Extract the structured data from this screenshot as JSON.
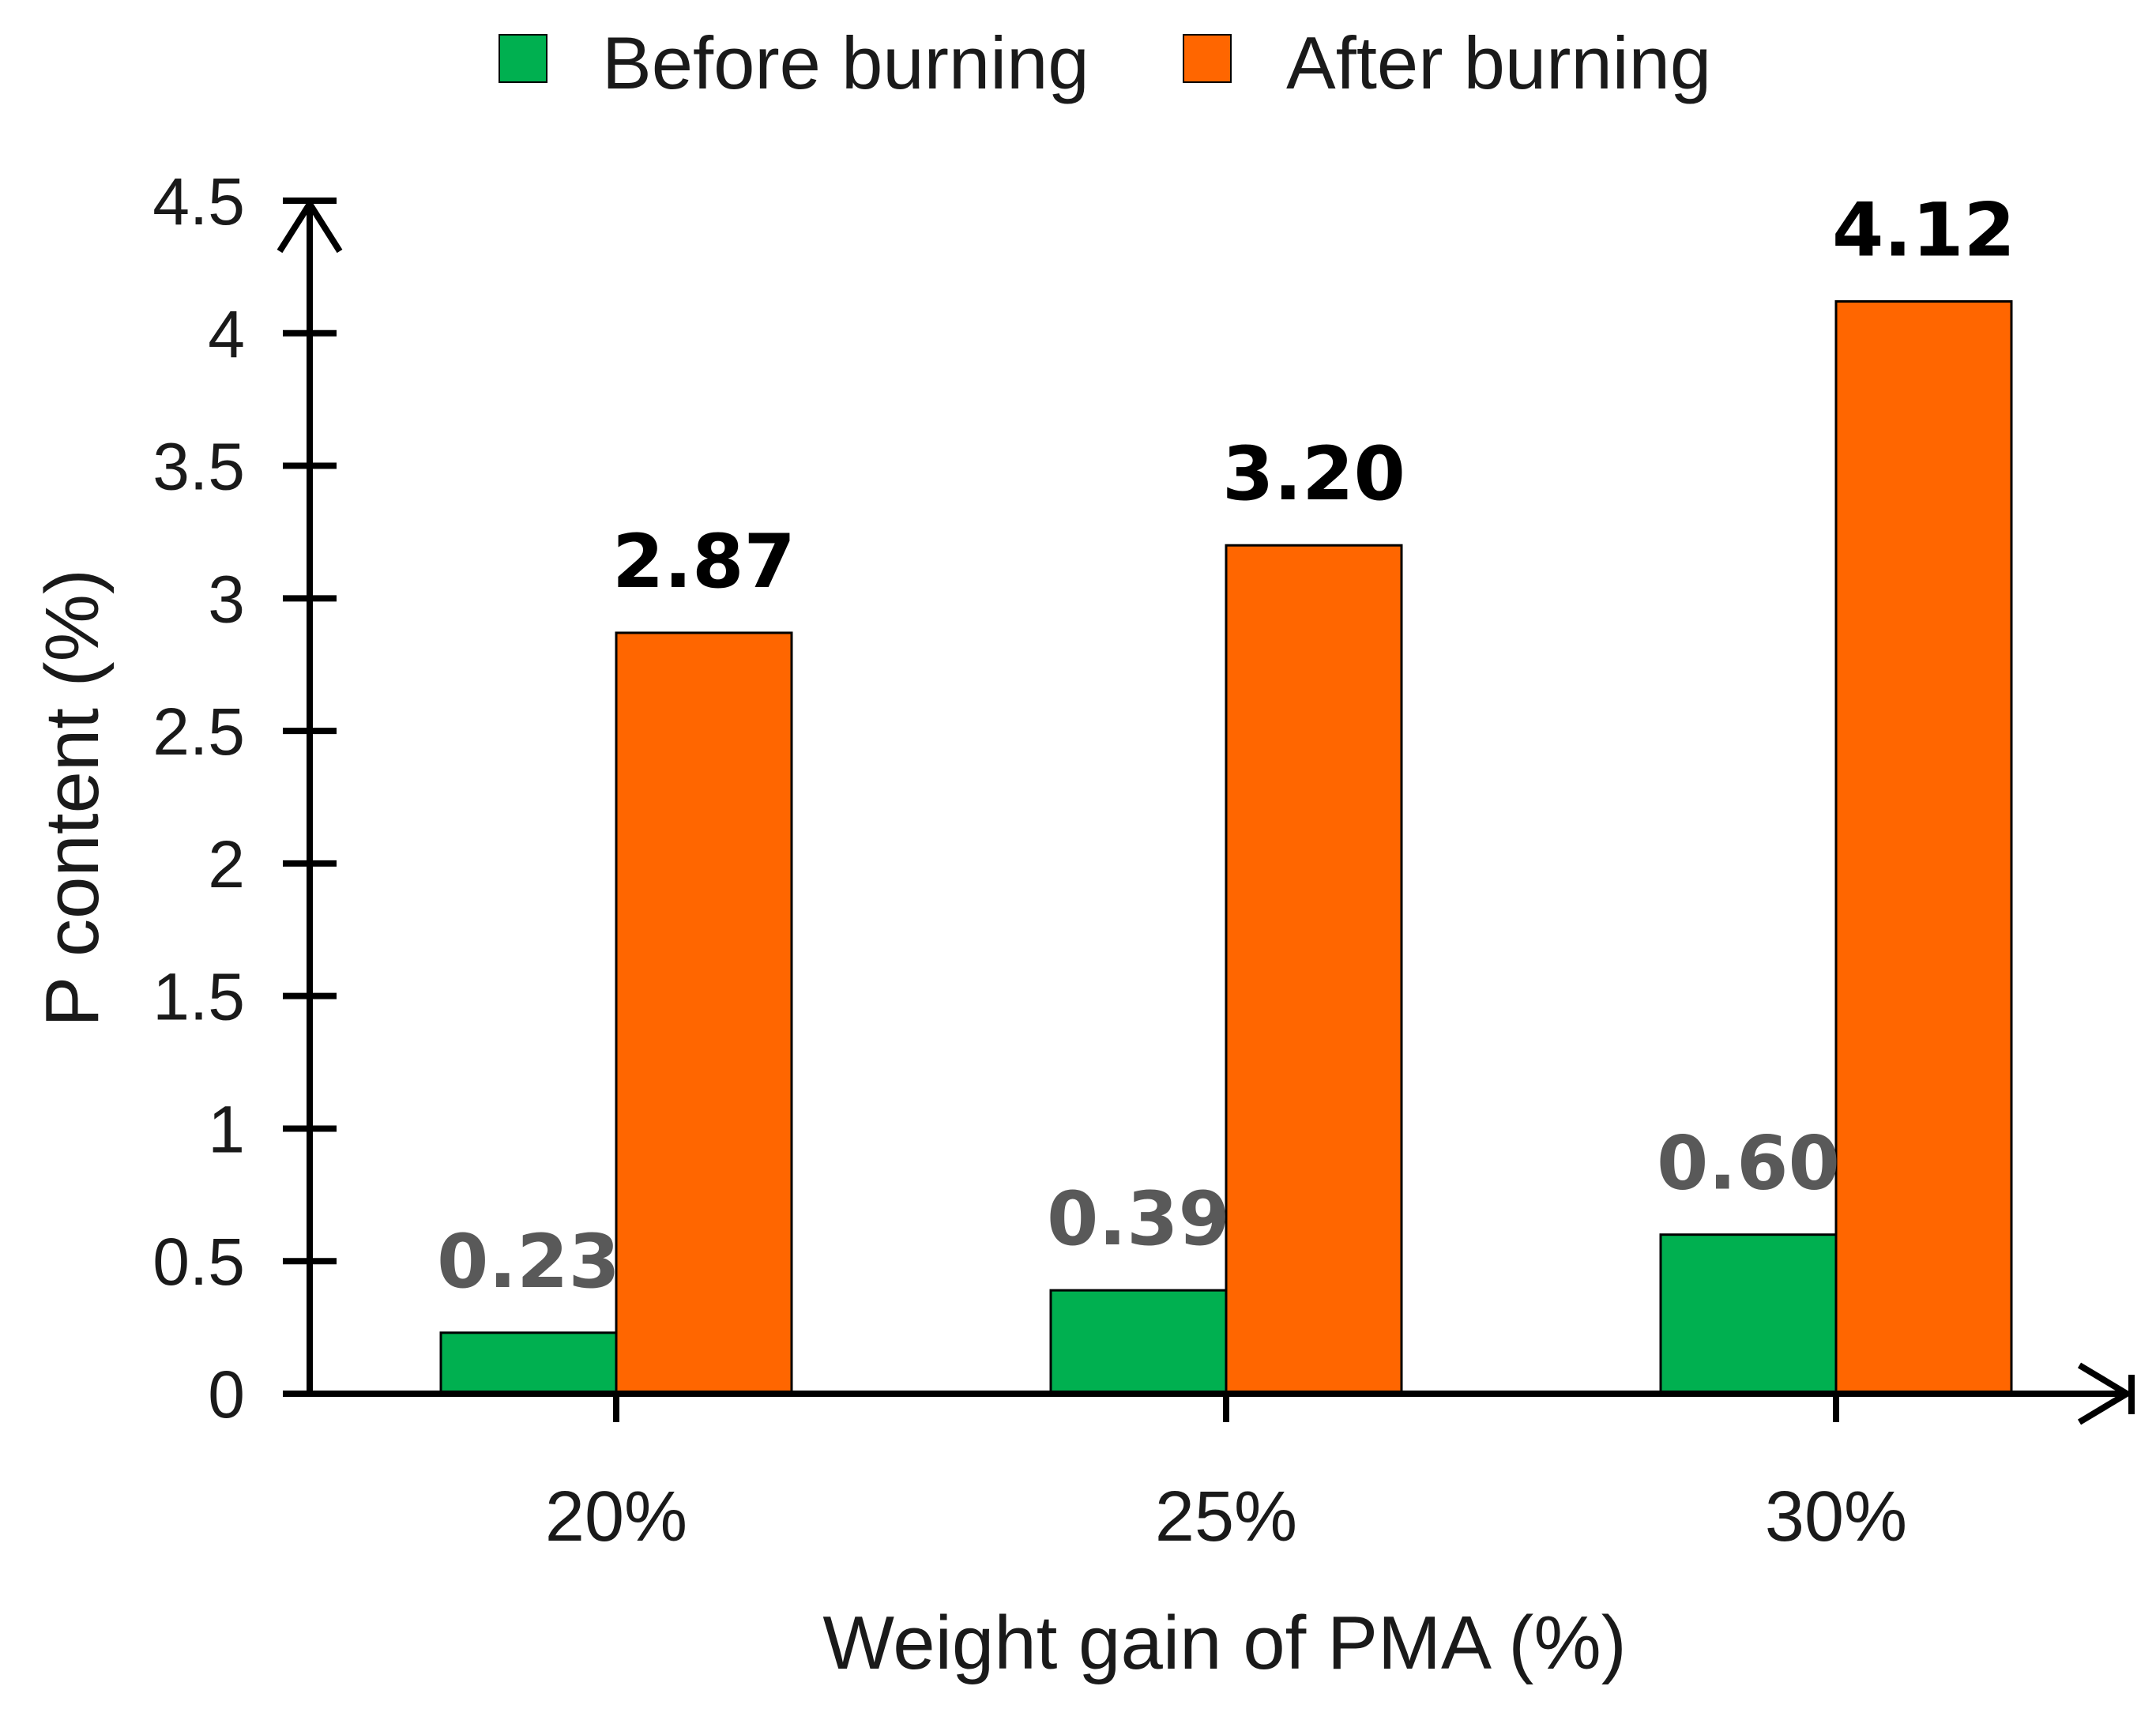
{
  "chart_data": {
    "type": "bar",
    "categories": [
      "20%",
      "25%",
      "30%"
    ],
    "series": [
      {
        "name": "Before burning",
        "values": [
          0.23,
          0.39,
          0.6
        ],
        "labels": [
          "0.23",
          "0.39",
          "0.60"
        ]
      },
      {
        "name": "After burning",
        "values": [
          2.87,
          3.2,
          4.12
        ],
        "labels": [
          "2.87",
          "3.20",
          "4.12"
        ]
      }
    ],
    "title": "",
    "xlabel": "Weight gain of PMA (%)",
    "ylabel": "P content (%)",
    "ylim": [
      0,
      4.5
    ],
    "yticks": [
      0,
      0.5,
      1,
      1.5,
      2,
      2.5,
      3,
      3.5,
      4,
      4.5
    ],
    "ytick_labels": [
      "0",
      "0.5",
      "1",
      "1.5",
      "2",
      "2.5",
      "3",
      "3.5",
      "4",
      "4.5"
    ],
    "grid": false,
    "legend_position": "top-center",
    "colors": {
      "Before burning": "#00b050",
      "After burning": "#ff6600",
      "label_before": "#595959",
      "label_after": "#000000",
      "axis": "#000000"
    }
  }
}
